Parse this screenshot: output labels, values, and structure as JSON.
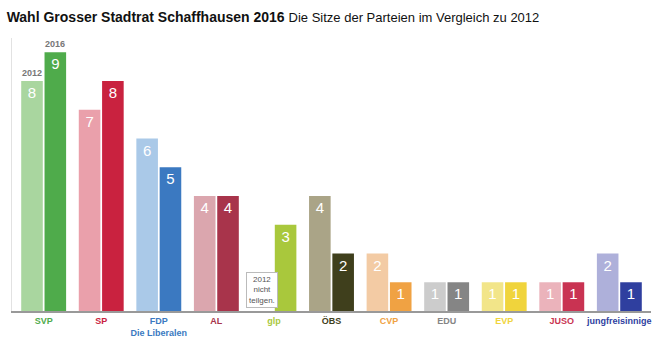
{
  "chart_data": {
    "type": "bar",
    "title": "Wahl Grosser Stadtrat Schaffhausen 2016",
    "subtitle": "Die Sitze der Parteien im Vergleich zu 2012",
    "categories": [
      "SVP",
      "SP",
      "FDP Die Liberalen",
      "AL",
      "glp",
      "ÖBS",
      "CVP",
      "EDU",
      "EVP",
      "JUSO",
      "jungfreisinnige"
    ],
    "series": [
      {
        "name": "2012",
        "colors": [
          "#a9d69f",
          "#eaa0ab",
          "#aac9e8",
          "#dba6ae",
          "#d4e89a",
          "#aaa487",
          "#f3cba4",
          "#cccccc",
          "#f2e589",
          "#ebb3bb",
          "#aeb0da"
        ],
        "values": [
          8,
          7,
          6,
          4,
          null,
          4,
          2,
          1,
          1,
          1,
          2
        ]
      },
      {
        "name": "2016",
        "colors": [
          "#4fab4b",
          "#c9223f",
          "#3b79c1",
          "#a8344b",
          "#a9c83c",
          "#3f3f1c",
          "#f0a243",
          "#858585",
          "#f0d43c",
          "#c93352",
          "#2f3f9f"
        ],
        "values": [
          9,
          8,
          5,
          4,
          3,
          2,
          1,
          1,
          1,
          1,
          1
        ]
      }
    ],
    "annotations": [
      {
        "text": "2012 nicht teilgen.",
        "category": "glp"
      }
    ],
    "ylim": [
      0,
      9.5
    ],
    "grid": false,
    "data_labels": true,
    "tick_labels": "x"
  }
}
